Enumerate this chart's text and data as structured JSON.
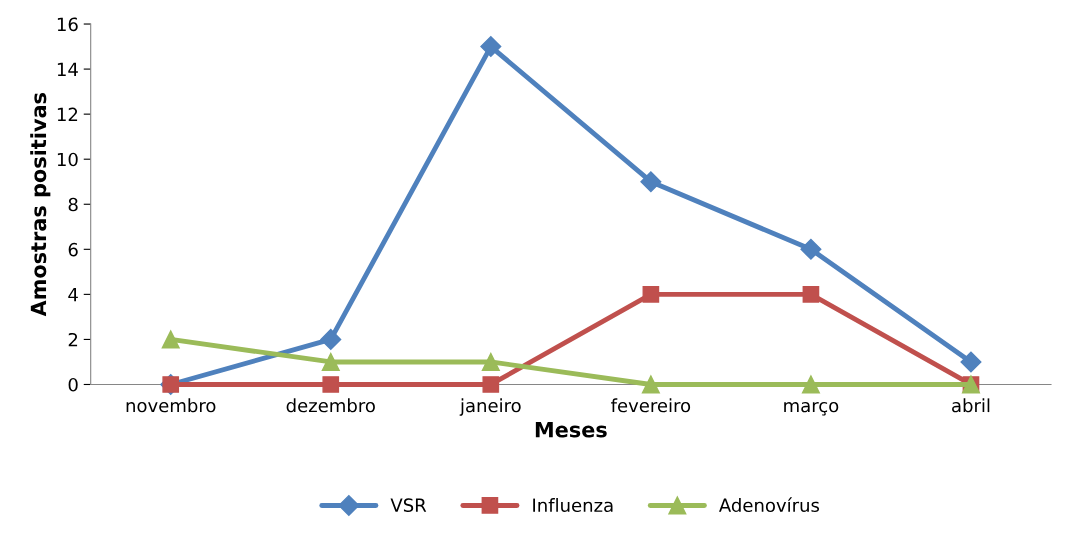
{
  "chart_data": {
    "type": "line",
    "xlabel": "Meses",
    "ylabel": "Amostras positivas",
    "categories": [
      "novembro",
      "dezembro",
      "janeiro",
      "fevereiro",
      "março",
      "abril"
    ],
    "series": [
      {
        "name": "VSR",
        "color": "#4f81bd",
        "marker": "diamond",
        "values": [
          0,
          2,
          15,
          9,
          6,
          1
        ]
      },
      {
        "name": "Influenza",
        "color": "#c0504d",
        "marker": "square",
        "values": [
          0,
          0,
          0,
          4,
          4,
          0
        ]
      },
      {
        "name": "Adenovírus",
        "color": "#9bbb59",
        "marker": "triangle",
        "values": [
          2,
          1,
          1,
          0,
          0,
          0
        ]
      }
    ],
    "ylim": [
      0,
      16
    ],
    "yticks": [
      0,
      2,
      4,
      6,
      8,
      10,
      12,
      14,
      16
    ],
    "grid": false,
    "legend": "bottom",
    "line_style": "solid"
  }
}
